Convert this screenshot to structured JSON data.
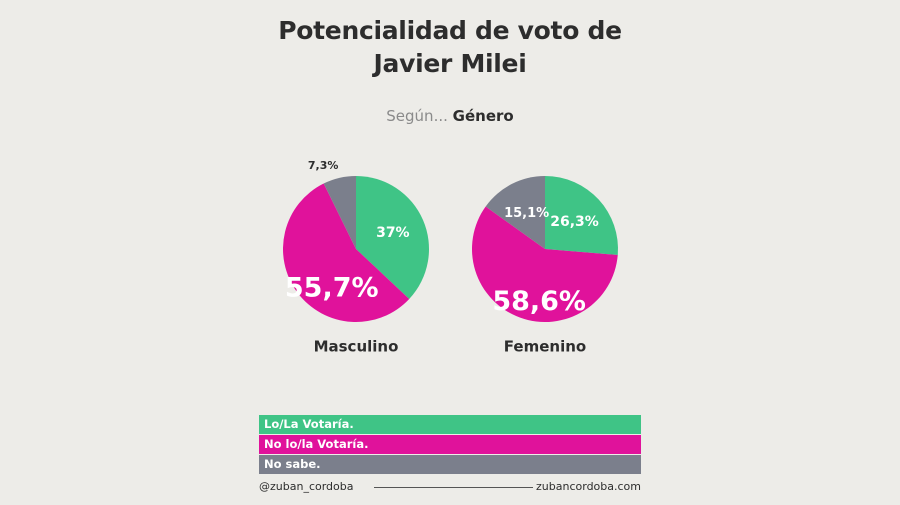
{
  "header": {
    "title_line1": "Potencialidad de voto de",
    "title_line2": "Javier Milei",
    "subtitle_prefix": "Según...",
    "subtitle_value": "Género"
  },
  "colors": {
    "votaria": "#3fc486",
    "no_votaria": "#e0129b",
    "no_sabe": "#7b7f8c"
  },
  "chart_data": [
    {
      "type": "pie",
      "label": "Masculino",
      "slices": [
        {
          "name": "Lo/La Votaría.",
          "value": 37,
          "label": "37%",
          "color": "#3fc486",
          "big": false
        },
        {
          "name": "No lo/la Votaría.",
          "value": 55.7,
          "label": "55,7%",
          "color": "#e0129b",
          "big": true
        },
        {
          "name": "No sabe.",
          "value": 7.3,
          "label": "7,3%",
          "color": "#7b7f8c",
          "big": false
        }
      ]
    },
    {
      "type": "pie",
      "label": "Femenino",
      "slices": [
        {
          "name": "Lo/La Votaría.",
          "value": 26.3,
          "label": "26,3%",
          "color": "#3fc486",
          "big": false
        },
        {
          "name": "No lo/la Votaría.",
          "value": 58.6,
          "label": "58,6%",
          "color": "#e0129b",
          "big": true
        },
        {
          "name": "No sabe.",
          "value": 15.1,
          "label": "15,1%",
          "color": "#7b7f8c",
          "big": false
        }
      ]
    }
  ],
  "legend": [
    {
      "label": "Lo/La Votaría.",
      "color": "#3fc486"
    },
    {
      "label": "No lo/la Votaría.",
      "color": "#e0129b"
    },
    {
      "label": "No sabe.",
      "color": "#7b7f8c"
    }
  ],
  "footer": {
    "handle": "@zuban_cordoba",
    "website": "zubancordoba.com"
  }
}
